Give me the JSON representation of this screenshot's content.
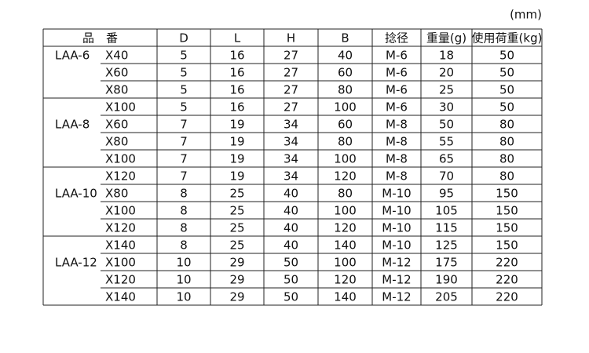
{
  "unit": "(mm)",
  "header": [
    "品　番",
    "D",
    "L",
    "H",
    "B",
    "捻径",
    "重量(g)",
    "使用荷重(kg)"
  ],
  "rows": [
    {
      "series": "LAA-6",
      "size": "X40",
      "cells": [
        5,
        16,
        27,
        40,
        "M-6",
        18,
        50
      ]
    },
    {
      "size": "X60",
      "cells": [
        5,
        16,
        27,
        60,
        "M-6",
        20,
        50
      ]
    },
    {
      "size": "X80",
      "cells": [
        5,
        16,
        27,
        80,
        "M-6",
        25,
        50
      ]
    },
    {
      "size": "X100",
      "cells": [
        5,
        16,
        27,
        100,
        "M-6",
        30,
        50
      ]
    },
    {
      "series": "LAA-8",
      "size": "X60",
      "cells": [
        7,
        19,
        34,
        60,
        "M-8",
        50,
        80
      ]
    },
    {
      "size": "X80",
      "cells": [
        7,
        19,
        34,
        80,
        "M-8",
        55,
        80
      ]
    },
    {
      "size": "X100",
      "cells": [
        7,
        19,
        34,
        100,
        "M-8",
        65,
        80
      ]
    },
    {
      "size": "X120",
      "cells": [
        7,
        19,
        34,
        120,
        "M-8",
        70,
        80
      ]
    },
    {
      "series": "LAA-10",
      "size": "X80",
      "cells": [
        8,
        25,
        40,
        80,
        "M-10",
        95,
        150
      ]
    },
    {
      "size": "X100",
      "cells": [
        8,
        25,
        40,
        100,
        "M-10",
        105,
        150
      ]
    },
    {
      "size": "X120",
      "cells": [
        8,
        25,
        40,
        120,
        "M-10",
        115,
        150
      ]
    },
    {
      "size": "X140",
      "cells": [
        8,
        25,
        40,
        140,
        "M-10",
        125,
        150
      ]
    },
    {
      "series": "LAA-12",
      "size": "X100",
      "cells": [
        10,
        29,
        50,
        100,
        "M-12",
        175,
        220
      ]
    },
    {
      "size": "X120",
      "cells": [
        10,
        29,
        50,
        120,
        "M-12",
        190,
        220
      ]
    },
    {
      "size": "X140",
      "cells": [
        10,
        29,
        50,
        140,
        "M-12",
        205,
        220
      ]
    }
  ]
}
